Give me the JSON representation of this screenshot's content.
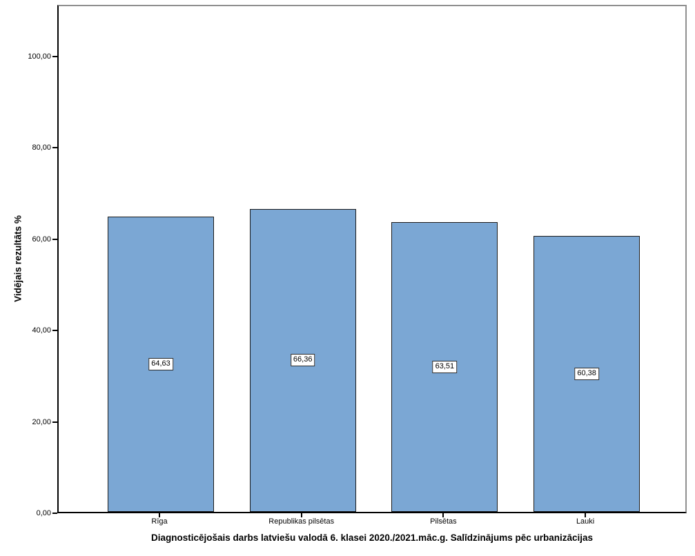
{
  "chart_data": {
    "type": "bar",
    "title": "Diagnosticējošais darbs latviešu valodā 6. klasei 2020./2021.māc.g. Salīdzinājums pēc urbanizācijas",
    "ylabel": "Vidējais rezultāts %",
    "xlabel": "",
    "categories": [
      "Rīga",
      "Republikas pilsētas",
      "Pilsētas",
      "Lauki"
    ],
    "values": [
      64.63,
      66.36,
      63.51,
      60.38
    ],
    "value_labels": [
      "64,63",
      "66,36",
      "63,51",
      "60,38"
    ],
    "y_ticks": [
      {
        "label": "0,00",
        "value": 0
      },
      {
        "label": "20,00",
        "value": 20
      },
      {
        "label": "40,00",
        "value": 40
      },
      {
        "label": "60,00",
        "value": 60
      },
      {
        "label": "80,00",
        "value": 80
      },
      {
        "label": "100,00",
        "value": 100
      }
    ],
    "ylim": [
      0,
      111.3
    ],
    "grid": false,
    "legend": "none",
    "bar_color": "#7BA7D4",
    "bar_border_color": "#1a1a1a",
    "frame_color": "#8f8f8f",
    "axis_color": "#000000"
  }
}
